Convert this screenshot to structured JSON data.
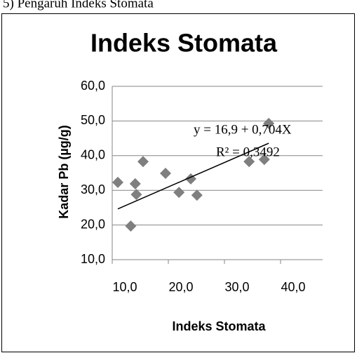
{
  "page_heading": "5) Pengaruh Indeks Stomata",
  "chart_data": {
    "type": "scatter",
    "title": "Indeks Stomata",
    "x_label": "Indeks Stomata",
    "y_label": "Kadar Pb (µg/g)",
    "x": [
      11,
      14.1,
      14.3,
      15.5,
      13.3,
      19.5,
      21.9,
      24,
      25.1,
      34.4,
      37.1,
      37.9
    ],
    "values": [
      32.3,
      31.9,
      28.8,
      38.3,
      19.7,
      34.9,
      29.4,
      33.3,
      28.6,
      38.3,
      38.9,
      49.3
    ],
    "color": "#7f7f7f",
    "xlim": [
      10,
      40
    ],
    "xticks": [
      {
        "value": 10,
        "label": "10,0"
      },
      {
        "value": 20,
        "label": "20,0"
      },
      {
        "value": 30,
        "label": "30,0"
      },
      {
        "value": 40,
        "label": "40,0"
      }
    ],
    "ylim": [
      10,
      60
    ],
    "yticks": [
      {
        "value": 10,
        "label": "10,0"
      },
      {
        "value": 20,
        "label": "20,0"
      },
      {
        "value": 30,
        "label": "30,0"
      },
      {
        "value": 40,
        "label": "40,0"
      },
      {
        "value": 50,
        "label": "50,0"
      },
      {
        "value": 60,
        "label": "60,0"
      }
    ],
    "grid": true,
    "trendline": {
      "intercept": 16.9,
      "slope": 0.704
    },
    "annotations": [
      "y = 16,9 + 0,704X",
      "R² = 0,3492"
    ]
  }
}
